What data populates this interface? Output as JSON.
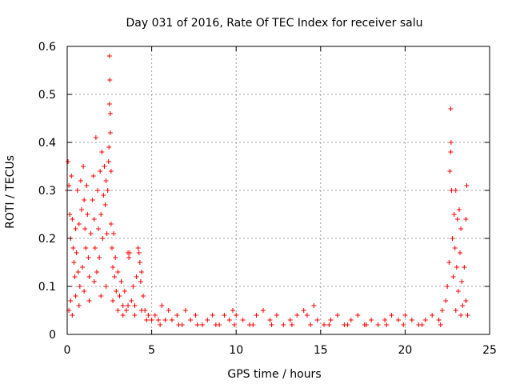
{
  "chart_data": {
    "type": "scatter",
    "title": "Day 031 of 2016, Rate Of TEC Index for receiver salu",
    "xlabel": "GPS time / hours",
    "ylabel": "ROTI / TECUs",
    "xlim": [
      0,
      25
    ],
    "ylim": [
      0,
      0.6
    ],
    "xticks": [
      0,
      5,
      10,
      15,
      20,
      25
    ],
    "yticks": [
      0,
      0.1,
      0.2,
      0.3,
      0.4,
      0.5,
      0.6
    ],
    "xtick_labels": [
      "0",
      "5",
      "10",
      "15",
      "20",
      "25"
    ],
    "ytick_labels": [
      "0",
      "0.1",
      "0.2",
      "0.3",
      "0.4",
      "0.5",
      "0.6"
    ],
    "grid": true,
    "marker": "+",
    "marker_color": "#ff0000",
    "series": [
      {
        "name": "ROTI",
        "points": [
          [
            0.0,
            0.3
          ],
          [
            0.05,
            0.36
          ],
          [
            0.1,
            0.31
          ],
          [
            0.15,
            0.25
          ],
          [
            0.2,
            0.2
          ],
          [
            0.25,
            0.33
          ],
          [
            0.3,
            0.24
          ],
          [
            0.35,
            0.18
          ],
          [
            0.4,
            0.15
          ],
          [
            0.45,
            0.12
          ],
          [
            0.5,
            0.22
          ],
          [
            0.55,
            0.17
          ],
          [
            0.6,
            0.3
          ],
          [
            0.65,
            0.13
          ],
          [
            0.7,
            0.23
          ],
          [
            0.75,
            0.1
          ],
          [
            0.8,
            0.32
          ],
          [
            0.85,
            0.26
          ],
          [
            0.9,
            0.14
          ],
          [
            0.95,
            0.35
          ],
          [
            1.0,
            0.28
          ],
          [
            1.05,
            0.22
          ],
          [
            1.1,
            0.18
          ],
          [
            1.15,
            0.31
          ],
          [
            1.2,
            0.25
          ],
          [
            1.25,
            0.16
          ],
          [
            1.3,
            0.12
          ],
          [
            1.4,
            0.21
          ],
          [
            1.5,
            0.28
          ],
          [
            1.55,
            0.33
          ],
          [
            1.6,
            0.24
          ],
          [
            1.65,
            0.18
          ],
          [
            1.7,
            0.41
          ],
          [
            1.75,
            0.13
          ],
          [
            1.8,
            0.3
          ],
          [
            1.85,
            0.22
          ],
          [
            1.9,
            0.16
          ],
          [
            1.95,
            0.34
          ],
          [
            2.0,
            0.25
          ],
          [
            2.05,
            0.38
          ],
          [
            2.1,
            0.2
          ],
          [
            2.15,
            0.29
          ],
          [
            2.2,
            0.35
          ],
          [
            2.25,
            0.27
          ],
          [
            2.3,
            0.32
          ],
          [
            2.35,
            0.21
          ],
          [
            2.4,
            0.3
          ],
          [
            2.45,
            0.36
          ],
          [
            2.47,
            0.39
          ],
          [
            2.5,
            0.48
          ],
          [
            2.52,
            0.53
          ],
          [
            2.5,
            0.58
          ],
          [
            2.55,
            0.42
          ],
          [
            2.55,
            0.46
          ],
          [
            2.6,
            0.34
          ],
          [
            2.6,
            0.23
          ],
          [
            2.65,
            0.18
          ],
          [
            2.7,
            0.14
          ],
          [
            2.75,
            0.21
          ],
          [
            2.8,
            0.12
          ],
          [
            2.85,
            0.16
          ],
          [
            2.9,
            0.09
          ],
          [
            3.0,
            0.13
          ],
          [
            3.1,
            0.08
          ],
          [
            3.2,
            0.11
          ],
          [
            3.3,
            0.06
          ],
          [
            3.4,
            0.09
          ],
          [
            3.5,
            0.05
          ],
          [
            3.6,
            0.17
          ],
          [
            3.65,
            0.16
          ],
          [
            3.7,
            0.17
          ],
          [
            3.8,
            0.07
          ],
          [
            3.9,
            0.1
          ],
          [
            4.0,
            0.06
          ],
          [
            4.1,
            0.12
          ],
          [
            4.2,
            0.18
          ],
          [
            4.25,
            0.17
          ],
          [
            4.3,
            0.15
          ],
          [
            4.35,
            0.11
          ],
          [
            4.4,
            0.13
          ],
          [
            4.5,
            0.08
          ],
          [
            4.6,
            0.05
          ],
          [
            4.8,
            0.04
          ],
          [
            5.0,
            0.03
          ],
          [
            5.2,
            0.04
          ],
          [
            5.4,
            0.03
          ],
          [
            5.6,
            0.06
          ],
          [
            5.8,
            0.03
          ],
          [
            6.0,
            0.05
          ],
          [
            6.2,
            0.03
          ],
          [
            6.5,
            0.04
          ],
          [
            6.8,
            0.02
          ],
          [
            7.0,
            0.05
          ],
          [
            7.3,
            0.03
          ],
          [
            7.6,
            0.04
          ],
          [
            8.0,
            0.02
          ],
          [
            8.3,
            0.03
          ],
          [
            8.6,
            0.04
          ],
          [
            9.0,
            0.02
          ],
          [
            9.3,
            0.04
          ],
          [
            9.6,
            0.03
          ],
          [
            9.8,
            0.05
          ],
          [
            10.0,
            0.04
          ],
          [
            10.4,
            0.03
          ],
          [
            10.8,
            0.02
          ],
          [
            11.2,
            0.04
          ],
          [
            11.6,
            0.05
          ],
          [
            12.0,
            0.03
          ],
          [
            12.4,
            0.04
          ],
          [
            12.8,
            0.02
          ],
          [
            13.2,
            0.03
          ],
          [
            13.6,
            0.04
          ],
          [
            14.0,
            0.05
          ],
          [
            14.2,
            0.04
          ],
          [
            14.6,
            0.06
          ],
          [
            14.8,
            0.03
          ],
          [
            15.2,
            0.02
          ],
          [
            15.6,
            0.03
          ],
          [
            16.0,
            0.04
          ],
          [
            16.4,
            0.02
          ],
          [
            16.8,
            0.03
          ],
          [
            17.2,
            0.04
          ],
          [
            17.6,
            0.02
          ],
          [
            18.0,
            0.03
          ],
          [
            18.4,
            0.02
          ],
          [
            18.8,
            0.03
          ],
          [
            19.2,
            0.04
          ],
          [
            19.6,
            0.03
          ],
          [
            20.0,
            0.04
          ],
          [
            20.4,
            0.03
          ],
          [
            20.8,
            0.02
          ],
          [
            21.2,
            0.03
          ],
          [
            21.6,
            0.04
          ],
          [
            22.0,
            0.03
          ],
          [
            22.2,
            0.05
          ],
          [
            22.4,
            0.07
          ],
          [
            22.5,
            0.1
          ],
          [
            22.6,
            0.15
          ],
          [
            22.65,
            0.34
          ],
          [
            22.7,
            0.38
          ],
          [
            22.72,
            0.4
          ],
          [
            22.7,
            0.47
          ],
          [
            22.75,
            0.3
          ],
          [
            22.8,
            0.2
          ],
          [
            22.85,
            0.12
          ],
          [
            22.9,
            0.25
          ],
          [
            22.95,
            0.18
          ],
          [
            23.0,
            0.3
          ],
          [
            23.05,
            0.14
          ],
          [
            23.1,
            0.24
          ],
          [
            23.15,
            0.09
          ],
          [
            23.2,
            0.26
          ],
          [
            23.25,
            0.17
          ],
          [
            23.3,
            0.22
          ],
          [
            23.35,
            0.11
          ],
          [
            23.4,
            0.06
          ],
          [
            23.5,
            0.14
          ],
          [
            23.6,
            0.24
          ],
          [
            23.65,
            0.31
          ],
          [
            23.7,
            0.04
          ],
          [
            0.1,
            0.05
          ],
          [
            0.2,
            0.07
          ],
          [
            0.3,
            0.04
          ],
          [
            0.5,
            0.08
          ],
          [
            0.7,
            0.06
          ],
          [
            1.0,
            0.09
          ],
          [
            1.3,
            0.07
          ],
          [
            1.6,
            0.11
          ],
          [
            2.0,
            0.08
          ],
          [
            2.3,
            0.1
          ],
          [
            2.7,
            0.07
          ],
          [
            3.0,
            0.05
          ],
          [
            3.3,
            0.04
          ],
          [
            3.6,
            0.06
          ],
          [
            4.0,
            0.04
          ],
          [
            4.4,
            0.05
          ],
          [
            4.7,
            0.03
          ],
          [
            5.5,
            0.02
          ],
          [
            6.6,
            0.02
          ],
          [
            7.7,
            0.02
          ],
          [
            8.8,
            0.02
          ],
          [
            9.9,
            0.02
          ],
          [
            11.0,
            0.02
          ],
          [
            12.1,
            0.02
          ],
          [
            13.3,
            0.02
          ],
          [
            14.4,
            0.02
          ],
          [
            15.5,
            0.02
          ],
          [
            16.6,
            0.02
          ],
          [
            17.7,
            0.02
          ],
          [
            18.9,
            0.02
          ],
          [
            19.9,
            0.02
          ],
          [
            21.0,
            0.02
          ],
          [
            22.1,
            0.02
          ],
          [
            23.0,
            0.05
          ],
          [
            23.3,
            0.04
          ],
          [
            23.6,
            0.07
          ]
        ]
      }
    ]
  }
}
